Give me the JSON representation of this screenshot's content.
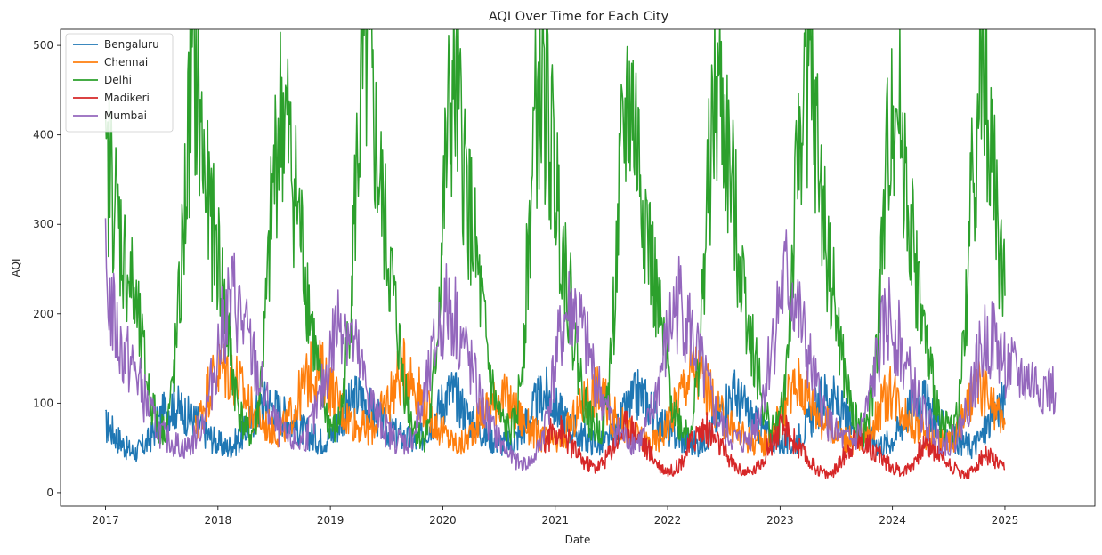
{
  "chart_data": {
    "type": "line",
    "title": "AQI Over Time for Each City",
    "xlabel": "Date",
    "ylabel": "AQI",
    "xlim": [
      2016.6,
      2025.8
    ],
    "ylim": [
      -15,
      518
    ],
    "xticks": [
      2017,
      2018,
      2019,
      2020,
      2021,
      2022,
      2023,
      2024,
      2025
    ],
    "yticks": [
      0,
      100,
      200,
      300,
      400,
      500
    ],
    "grid": false,
    "legend_position": "top-left",
    "series": [
      {
        "name": "Bengaluru",
        "color": "#1f77b4",
        "x_range": [
          2017.0,
          2025.0
        ],
        "values": [
          75,
          72,
          68,
          62,
          58,
          52,
          48,
          46,
          45,
          48,
          52,
          55,
          62,
          70,
          78,
          85,
          92,
          95,
          98,
          96,
          92,
          90,
          85,
          82,
          80,
          75,
          70,
          65,
          62,
          58,
          55,
          52,
          50,
          52,
          55,
          58,
          62,
          68,
          75,
          82,
          90,
          95,
          100,
          102,
          98,
          95,
          92,
          88,
          85,
          80,
          75,
          72,
          70,
          68,
          65,
          62,
          60,
          58,
          60,
          62,
          65,
          70,
          78,
          85,
          92,
          98,
          104,
          108,
          105,
          100,
          95,
          90,
          85,
          80,
          75,
          70,
          68,
          66,
          64,
          62,
          60,
          58,
          56,
          58,
          62,
          68,
          75,
          82,
          90,
          98,
          104,
          110,
          112,
          108,
          102,
          95,
          88,
          82,
          76,
          72,
          68,
          65,
          62,
          60,
          58,
          56,
          55,
          54,
          56,
          60,
          65,
          72,
          80,
          88,
          96,
          102,
          108,
          110,
          106,
          100,
          94,
          88,
          82,
          76,
          72,
          68,
          65,
          62,
          60,
          58,
          56,
          55,
          54,
          56,
          60,
          66,
          72,
          80,
          88,
          96,
          102,
          108,
          110,
          106,
          100,
          94,
          88,
          82,
          76,
          72,
          68,
          65,
          62,
          60,
          58,
          56,
          55,
          54,
          56,
          60,
          66,
          72,
          80,
          88,
          96,
          102,
          108,
          110,
          106,
          100,
          94,
          88,
          82,
          76,
          72,
          68,
          65,
          62,
          60,
          58,
          56,
          55,
          54,
          56,
          60,
          66,
          72,
          80,
          88,
          96,
          102,
          108,
          110,
          106,
          100,
          94,
          88,
          82,
          76,
          72,
          68,
          65,
          62,
          60,
          58,
          56,
          55,
          54,
          56,
          60,
          66,
          72,
          80,
          88,
          96,
          102,
          106,
          104,
          98,
          92,
          86,
          80,
          74,
          70,
          66,
          62,
          60,
          58,
          56,
          54,
          52,
          54,
          58,
          64,
          72,
          80,
          88,
          96,
          100,
          98
        ]
      },
      {
        "name": "Chennai",
        "color": "#ff7f0e",
        "x_range": [
          2017.8,
          2025.0
        ],
        "values": [
          70,
          85,
          100,
          115,
          125,
          135,
          138,
          138,
          135,
          130,
          125,
          115,
          105,
          95,
          88,
          82,
          78,
          75,
          72,
          70,
          68,
          72,
          80,
          90,
          100,
          110,
          120,
          130,
          135,
          138,
          135,
          128,
          120,
          110,
          100,
          92,
          86,
          82,
          78,
          75,
          72,
          70,
          72,
          78,
          86,
          95,
          105,
          115,
          125,
          132,
          136,
          132,
          125,
          115,
          105,
          95,
          86,
          78,
          72,
          68,
          62,
          58,
          55,
          52,
          56,
          62,
          70,
          78,
          86,
          92,
          96,
          100,
          105,
          108,
          104,
          98,
          92,
          86,
          80,
          75,
          70,
          66,
          62,
          60,
          58,
          56,
          55,
          58,
          64,
          72,
          80,
          88,
          96,
          104,
          110,
          114,
          112,
          106,
          98,
          90,
          84,
          78,
          74,
          70,
          66,
          63,
          60,
          58,
          56,
          55,
          58,
          64,
          72,
          82,
          92,
          104,
          116,
          126,
          134,
          138,
          134,
          126,
          116,
          106,
          96,
          88,
          82,
          76,
          72,
          68,
          65,
          62,
          60,
          58,
          56,
          55,
          58,
          64,
          72,
          82,
          92,
          102,
          112,
          118,
          122,
          118,
          110,
          100,
          92,
          84,
          78,
          74,
          70,
          66,
          63,
          60,
          58,
          56,
          55,
          58,
          64,
          72,
          82,
          92,
          102,
          108,
          112,
          108,
          100,
          92,
          84,
          78,
          74,
          70,
          66,
          63,
          60,
          58,
          56,
          55,
          58,
          64,
          72,
          82,
          92,
          102,
          110,
          116,
          112,
          104,
          96,
          88,
          82,
          76
        ]
      },
      {
        "name": "Delhi",
        "color": "#2ca02c",
        "x_range": [
          2017.0,
          2025.0
        ],
        "values": [
          340,
          360,
          330,
          300,
          270,
          250,
          230,
          200,
          170,
          140,
          110,
          90,
          75,
          70,
          80,
          110,
          160,
          230,
          320,
          420,
          470,
          440,
          380,
          330,
          300,
          280,
          250,
          210,
          170,
          130,
          100,
          80,
          70,
          65,
          75,
          110,
          170,
          250,
          340,
          400,
          430,
          410,
          370,
          340,
          300,
          260,
          220,
          180,
          140,
          110,
          90,
          75,
          70,
          80,
          110,
          170,
          260,
          360,
          440,
          480,
          450,
          400,
          350,
          310,
          270,
          230,
          190,
          150,
          115,
          90,
          75,
          65,
          60,
          70,
          100,
          160,
          250,
          350,
          420,
          450,
          420,
          380,
          340,
          300,
          260,
          220,
          180,
          140,
          110,
          90,
          78,
          72,
          70,
          80,
          120,
          190,
          280,
          380,
          440,
          460,
          430,
          390,
          350,
          310,
          270,
          230,
          190,
          150,
          120,
          95,
          80,
          72,
          70,
          80,
          115,
          180,
          270,
          360,
          420,
          440,
          410,
          370,
          330,
          290,
          250,
          215,
          180,
          150,
          120,
          95,
          80,
          72,
          70,
          80,
          115,
          180,
          270,
          360,
          420,
          450,
          420,
          380,
          340,
          300,
          260,
          225,
          190,
          160,
          130,
          100,
          82,
          74,
          72,
          80,
          115,
          180,
          270,
          360,
          440,
          470,
          440,
          400,
          350,
          300,
          260,
          220,
          185,
          150,
          120,
          95,
          80,
          72,
          70,
          80,
          110,
          170,
          250,
          340,
          420,
          450,
          420,
          380,
          330,
          280,
          240,
          200,
          165,
          135,
          110,
          90,
          78,
          72,
          72,
          82,
          120,
          190,
          290,
          380,
          440,
          470,
          430,
          380,
          320,
          260,
          220
        ]
      },
      {
        "name": "Madikeri",
        "color": "#d62728",
        "x_range": [
          2020.9,
          2025.0
        ],
        "values": [
          55,
          62,
          68,
          72,
          70,
          65,
          58,
          52,
          46,
          40,
          35,
          32,
          30,
          28,
          30,
          34,
          40,
          48,
          56,
          64,
          70,
          75,
          72,
          68,
          62,
          56,
          50,
          44,
          38,
          32,
          28,
          25,
          24,
          26,
          30,
          36,
          44,
          52,
          60,
          66,
          70,
          72,
          68,
          62,
          56,
          50,
          44,
          38,
          32,
          28,
          25,
          23,
          22,
          24,
          28,
          34,
          42,
          50,
          58,
          64,
          68,
          70,
          66,
          60,
          54,
          48,
          42,
          36,
          32,
          28,
          25,
          22,
          20,
          22,
          26,
          32,
          40,
          48,
          54,
          58,
          60,
          58,
          54,
          50,
          46,
          42,
          38,
          34,
          30,
          27,
          25,
          24,
          26,
          30,
          36,
          44,
          50,
          54,
          52,
          48,
          44,
          40,
          36,
          32,
          28,
          25,
          22,
          20,
          22,
          26,
          32,
          38,
          42,
          40,
          36,
          32,
          28,
          26
        ]
      },
      {
        "name": "Mumbai",
        "color": "#9467bd",
        "x_range": [
          2017.0,
          2025.45
        ],
        "values": [
          240,
          210,
          180,
          160,
          150,
          140,
          130,
          110,
          95,
          80,
          70,
          62,
          58,
          55,
          52,
          50,
          55,
          65,
          80,
          100,
          130,
          160,
          190,
          210,
          220,
          200,
          180,
          160,
          140,
          120,
          100,
          85,
          72,
          64,
          60,
          58,
          56,
          60,
          70,
          85,
          105,
          130,
          160,
          185,
          200,
          190,
          170,
          150,
          130,
          110,
          95,
          82,
          72,
          65,
          60,
          58,
          56,
          62,
          75,
          95,
          120,
          150,
          180,
          200,
          210,
          200,
          180,
          160,
          140,
          120,
          100,
          85,
          72,
          62,
          52,
          44,
          38,
          34,
          32,
          34,
          40,
          55,
          80,
          115,
          150,
          180,
          200,
          210,
          195,
          175,
          155,
          135,
          115,
          98,
          84,
          72,
          64,
          60,
          58,
          56,
          62,
          75,
          95,
          120,
          150,
          180,
          205,
          215,
          200,
          180,
          160,
          140,
          120,
          100,
          85,
          72,
          64,
          60,
          58,
          56,
          62,
          75,
          95,
          125,
          160,
          195,
          225,
          240,
          225,
          200,
          175,
          150,
          125,
          105,
          88,
          75,
          66,
          60,
          58,
          56,
          62,
          75,
          95,
          125,
          155,
          180,
          195,
          185,
          165,
          145,
          125,
          108,
          92,
          80,
          70,
          62,
          58,
          56,
          60,
          70,
          85,
          105,
          130,
          155,
          170,
          175,
          165,
          150,
          140,
          135,
          130,
          128,
          125,
          122,
          120,
          118,
          115,
          112
        ]
      }
    ]
  }
}
